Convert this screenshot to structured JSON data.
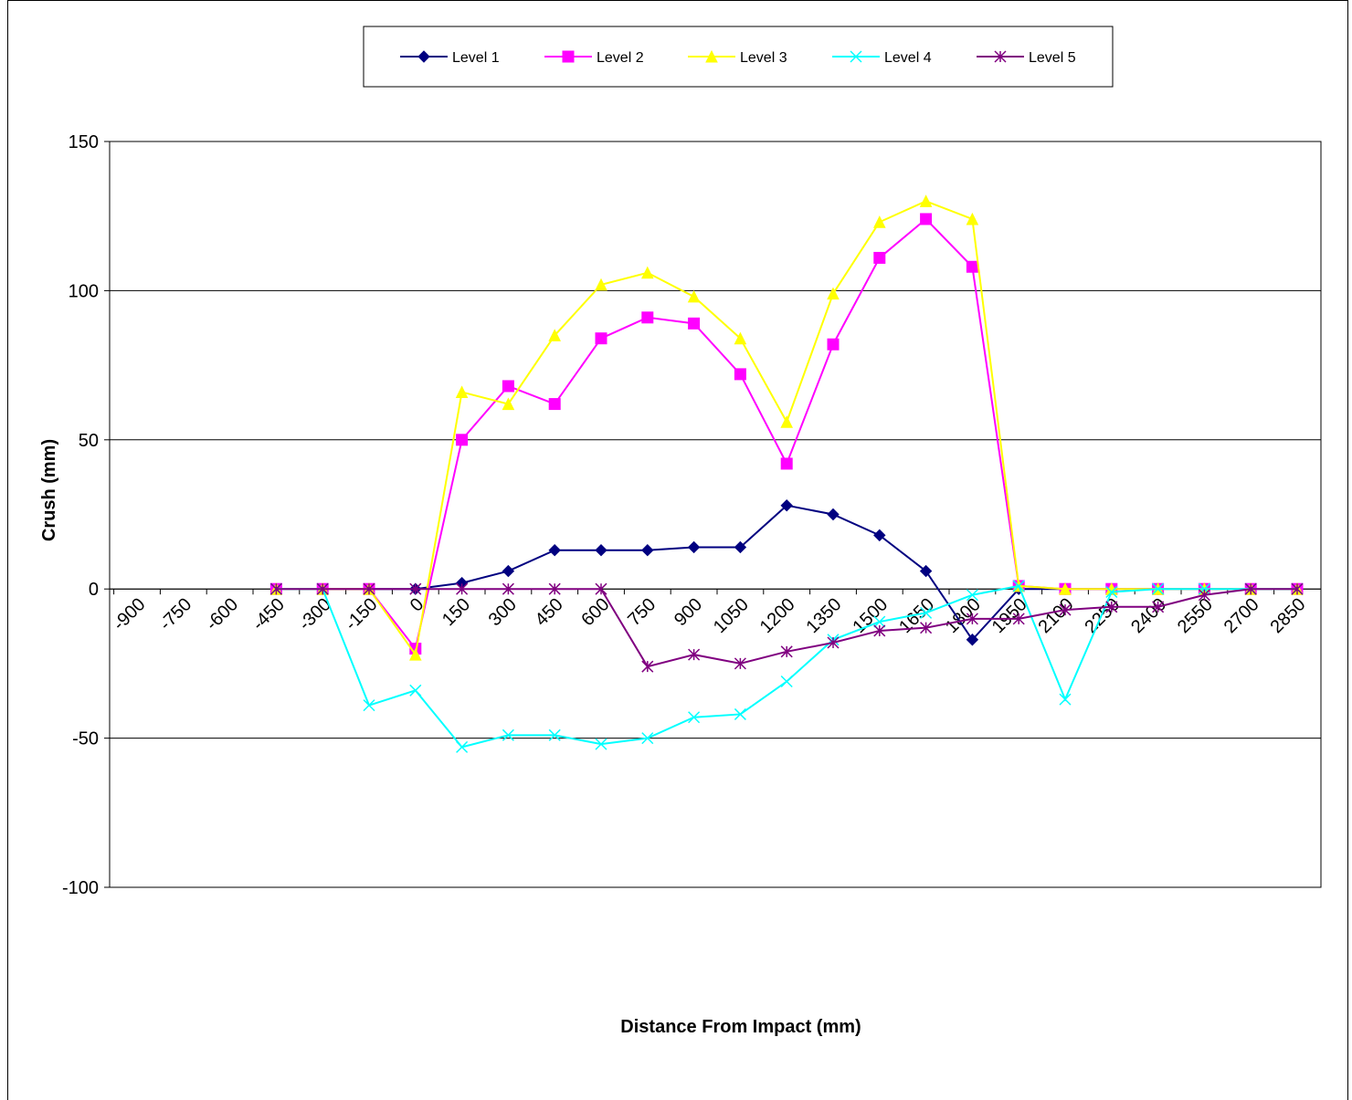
{
  "chart_data": {
    "type": "line",
    "xlabel": "Distance From Impact (mm)",
    "ylabel": "Crush (mm)",
    "ylim": [
      -100,
      150
    ],
    "y_ticks": [
      -100,
      -50,
      0,
      50,
      100,
      150
    ],
    "categories": [
      "-900",
      "-750",
      "-600",
      "-450",
      "-300",
      "-150",
      "0",
      "150",
      "300",
      "450",
      "600",
      "750",
      "900",
      "1050",
      "1200",
      "1350",
      "1500",
      "1650",
      "1800",
      "1950",
      "2100",
      "2250",
      "2400",
      "2550",
      "2700",
      "2850"
    ],
    "grid": "horizontal",
    "legend_position": "top",
    "series": [
      {
        "name": "Level 1",
        "color": "#000080",
        "marker": "diamond",
        "values": [
          null,
          null,
          null,
          0,
          0,
          0,
          0,
          2,
          6,
          13,
          13,
          13,
          14,
          14,
          28,
          25,
          18,
          6,
          -17,
          0,
          0,
          0,
          0,
          0,
          0,
          0
        ]
      },
      {
        "name": "Level 2",
        "color": "#FF00FF",
        "marker": "square",
        "values": [
          null,
          null,
          null,
          0,
          0,
          0,
          -20,
          50,
          68,
          62,
          84,
          91,
          89,
          72,
          42,
          82,
          111,
          124,
          108,
          1,
          0,
          0,
          0,
          0,
          0,
          0
        ]
      },
      {
        "name": "Level 3",
        "color": "#FFFF00",
        "marker": "triangle",
        "values": [
          null,
          null,
          null,
          0,
          0,
          0,
          -22,
          66,
          62,
          85,
          102,
          106,
          98,
          84,
          56,
          99,
          123,
          130,
          124,
          1,
          0,
          0,
          0,
          0,
          0,
          0
        ]
      },
      {
        "name": "Level 4",
        "color": "#00FFFF",
        "marker": "x",
        "values": [
          null,
          null,
          null,
          0,
          0,
          -39,
          -34,
          -53,
          -49,
          -49,
          -52,
          -50,
          -43,
          -42,
          -31,
          -17,
          -11,
          -8,
          -2,
          1,
          -37,
          -1,
          0,
          0,
          0,
          0
        ]
      },
      {
        "name": "Level 5",
        "color": "#800080",
        "marker": "star",
        "values": [
          null,
          null,
          null,
          0,
          0,
          0,
          0,
          0,
          0,
          0,
          0,
          -26,
          -22,
          -25,
          -21,
          -18,
          -14,
          -13,
          -10,
          -10,
          -7,
          -6,
          -6,
          -2,
          0,
          0
        ]
      }
    ]
  }
}
